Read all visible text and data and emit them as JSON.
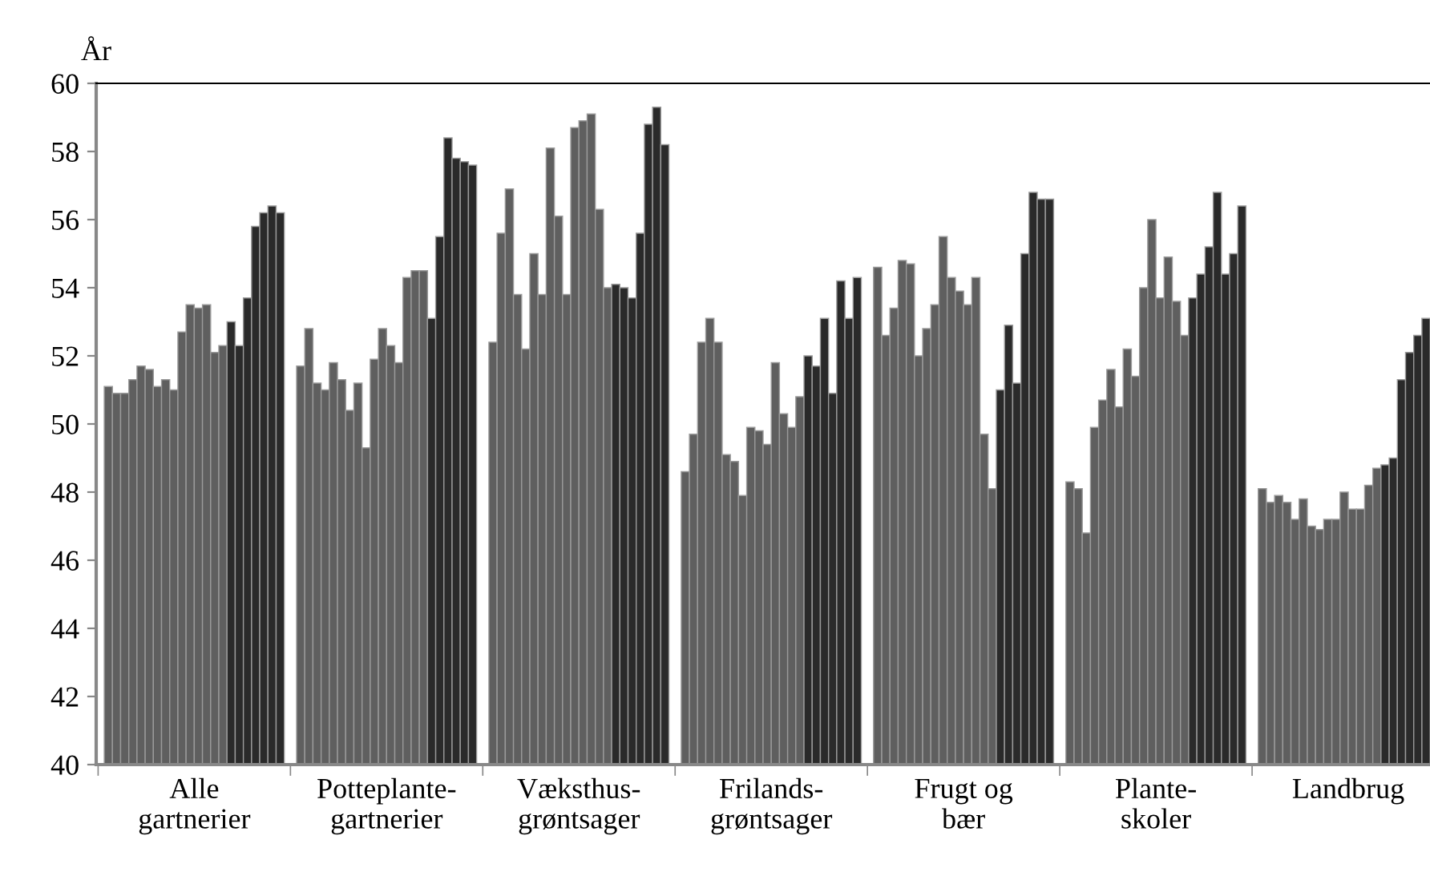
{
  "chart_data": {
    "type": "bar",
    "ylabel": "År",
    "categories": [
      "Alle\ngartnerier",
      "Potteplante-\ngartnerier",
      "Væksthus-\ngrøntsager",
      "Frilands-\ngrøntsager",
      "Frugt og\nbær",
      "Plante-\nskoler",
      "Landbrug"
    ],
    "ylim": [
      40,
      60
    ],
    "yticks": [
      40,
      42,
      44,
      46,
      48,
      50,
      52,
      54,
      56,
      58,
      60
    ],
    "grid": false,
    "legend": false,
    "series": [
      {
        "color": "#5f5f5f",
        "values": [
          51.1,
          51.7,
          52.4,
          48.6,
          54.6,
          48.3,
          48.1
        ]
      },
      {
        "color": "#5f5f5f",
        "values": [
          50.9,
          52.8,
          55.6,
          49.7,
          52.6,
          48.1,
          47.7
        ]
      },
      {
        "color": "#5f5f5f",
        "values": [
          50.9,
          51.2,
          56.9,
          52.4,
          53.4,
          46.8,
          47.9
        ]
      },
      {
        "color": "#5f5f5f",
        "values": [
          51.3,
          51.0,
          53.8,
          53.1,
          54.8,
          49.9,
          47.7
        ]
      },
      {
        "color": "#5f5f5f",
        "values": [
          51.7,
          51.8,
          52.2,
          52.4,
          54.7,
          50.7,
          47.2
        ]
      },
      {
        "color": "#5f5f5f",
        "values": [
          51.6,
          51.3,
          55.0,
          49.1,
          52.0,
          51.6,
          47.8
        ]
      },
      {
        "color": "#5f5f5f",
        "values": [
          51.1,
          50.4,
          53.8,
          48.9,
          52.8,
          50.5,
          47.0
        ]
      },
      {
        "color": "#5f5f5f",
        "values": [
          51.3,
          51.2,
          58.1,
          47.9,
          53.5,
          52.2,
          46.9
        ]
      },
      {
        "color": "#5f5f5f",
        "values": [
          51.0,
          49.3,
          56.1,
          49.9,
          55.5,
          51.4,
          47.2
        ]
      },
      {
        "color": "#5f5f5f",
        "values": [
          52.7,
          51.9,
          53.8,
          49.8,
          54.3,
          54.0,
          47.2
        ]
      },
      {
        "color": "#5f5f5f",
        "values": [
          53.5,
          52.8,
          58.7,
          49.4,
          53.9,
          56.0,
          48.0
        ]
      },
      {
        "color": "#5f5f5f",
        "values": [
          53.4,
          52.3,
          58.9,
          51.8,
          53.5,
          53.7,
          47.5
        ]
      },
      {
        "color": "#5f5f5f",
        "values": [
          53.5,
          51.8,
          59.1,
          50.3,
          54.3,
          54.9,
          47.5
        ]
      },
      {
        "color": "#5f5f5f",
        "values": [
          52.1,
          54.3,
          56.3,
          49.9,
          49.7,
          53.6,
          48.2
        ]
      },
      {
        "color": "#5f5f5f",
        "values": [
          52.3,
          54.5,
          54.0,
          50.8,
          48.1,
          52.6,
          48.7
        ]
      },
      {
        "color": "#2a2a2a",
        "colors": [
          "#2a2a2a",
          "#5f5f5f",
          "#2a2a2a",
          "#2a2a2a",
          "#2a2a2a",
          "#2a2a2a",
          "#2a2a2a"
        ],
        "values": [
          53.0,
          54.5,
          54.1,
          52.0,
          51.0,
          53.7,
          48.8
        ]
      },
      {
        "color": "#2a2a2a",
        "values": [
          52.3,
          53.1,
          54.0,
          51.7,
          52.9,
          54.4,
          49.0
        ]
      },
      {
        "color": "#2a2a2a",
        "values": [
          53.7,
          55.5,
          53.7,
          53.1,
          51.2,
          55.2,
          51.3
        ]
      },
      {
        "color": "#2a2a2a",
        "values": [
          55.8,
          58.4,
          55.6,
          50.9,
          55.0,
          56.8,
          52.1
        ]
      },
      {
        "color": "#2a2a2a",
        "values": [
          56.2,
          57.8,
          58.8,
          54.2,
          56.8,
          54.4,
          52.6
        ]
      },
      {
        "color": "#2a2a2a",
        "values": [
          56.4,
          57.7,
          59.3,
          53.1,
          56.6,
          55.0,
          53.1
        ]
      },
      {
        "color": "#2a2a2a",
        "values": [
          56.2,
          57.6,
          58.2,
          54.3,
          56.6,
          56.4,
          null
        ]
      }
    ]
  }
}
